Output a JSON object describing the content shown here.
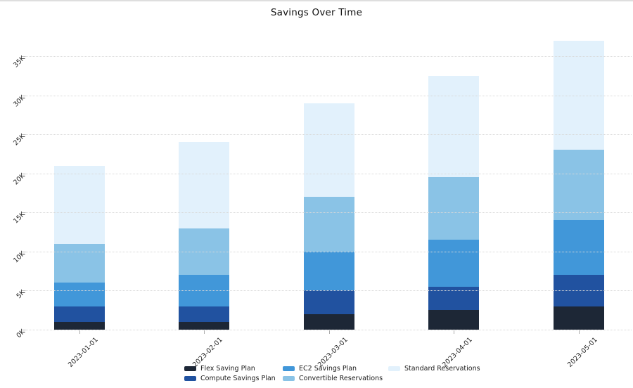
{
  "title": "Savings Over Time",
  "chart_data": {
    "type": "bar",
    "stacked": true,
    "title": "Savings Over Time",
    "xlabel": "",
    "ylabel": "",
    "grid": "horizontal-dotted",
    "legend_position": "bottom",
    "ylim": [
      0,
      35000
    ],
    "y_tick_values": [
      0,
      5000,
      10000,
      15000,
      20000,
      25000,
      30000,
      35000
    ],
    "y_tick_labels": [
      "0K",
      "5K",
      "10K",
      "15K",
      "20K",
      "25K",
      "30K",
      "35K"
    ],
    "categories": [
      "2023-01-01",
      "2023-02-01",
      "2023-03-01",
      "2023-04-01",
      "2023-05-01"
    ],
    "series": [
      {
        "name": "Flex Saving Plan",
        "color": "#1d2736",
        "values": [
          1000,
          1000,
          2000,
          2500,
          3000
        ]
      },
      {
        "name": "Compute Savings Plan",
        "color": "#2152a0",
        "values": [
          2000,
          2000,
          3000,
          3000,
          4000
        ]
      },
      {
        "name": "EC2 Savings Plan",
        "color": "#4197d9",
        "values": [
          3000,
          4000,
          5000,
          6000,
          7000
        ]
      },
      {
        "name": "Convertible Reservations",
        "color": "#8ac3e6",
        "values": [
          5000,
          6000,
          7000,
          8000,
          9000
        ]
      },
      {
        "name": "Standard Reservations",
        "color": "#e2f1fc",
        "values": [
          10000,
          11000,
          12000,
          13000,
          14000
        ]
      }
    ],
    "stack_totals": [
      21000,
      24000,
      29000,
      32500,
      37000
    ]
  }
}
